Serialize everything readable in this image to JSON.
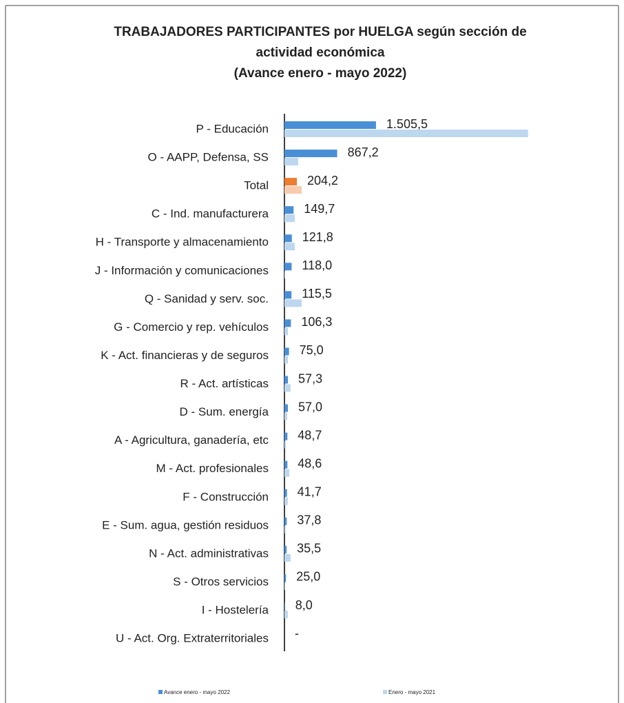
{
  "chart_data": {
    "type": "barh",
    "title": [
      "TRABAJADORES  PARTICIPANTES  por HUELGA  según sección de",
      "actividad  económica"
    ],
    "subtitle": "(Avance enero - mayo 2022)",
    "categories": [
      "P - Educación",
      "O - AAPP, Defensa, SS",
      "Total",
      "C - Ind. manufacturera",
      "H - Transporte y almacenamiento",
      "J - Información y comunicaciones",
      "Q - Sanidad y serv. soc.",
      "G - Comercio y rep. vehículos",
      "K - Act. financieras y de seguros",
      "R - Act. artísticas",
      "D - Sum. energía",
      "A - Agricultura, ganadería, etc",
      "M - Act. profesionales",
      "F - Construcción",
      "E - Sum. agua, gestión residuos",
      "N - Act. administrativas",
      "S - Otros servicios",
      "I - Hostelería",
      "U - Act. Org. Extraterritoriales"
    ],
    "series": [
      {
        "name": "Avance enero - mayo 2022",
        "color": "#4a8fd6",
        "highlight_color": "#ed7d31",
        "values": [
          1505.5,
          867.2,
          204.2,
          149.7,
          121.8,
          118.0,
          115.5,
          106.3,
          75.0,
          57.3,
          57.0,
          48.7,
          48.6,
          41.7,
          37.8,
          35.5,
          25.0,
          8.0,
          null
        ],
        "value_labels": [
          "1.505,5",
          "867,2",
          "204,2",
          "149,7",
          "121,8",
          "118,0",
          "115,5",
          "106,3",
          "75,0",
          "57,3",
          "57,0",
          "48,7",
          "48,6",
          "41,7",
          "37,8",
          "35,5",
          "25,0",
          "8,0",
          "-"
        ]
      },
      {
        "name": "Enero - mayo 2021",
        "color": "#bdd7ee",
        "highlight_color": "#f8cbad",
        "values": [
          4007,
          226,
          283,
          170,
          170,
          10,
          283,
          57,
          57,
          100,
          45,
          25,
          80,
          55,
          20,
          100,
          10,
          55,
          null
        ]
      }
    ],
    "highlight_category": "Total",
    "xlim": [
      0,
      4100
    ]
  }
}
